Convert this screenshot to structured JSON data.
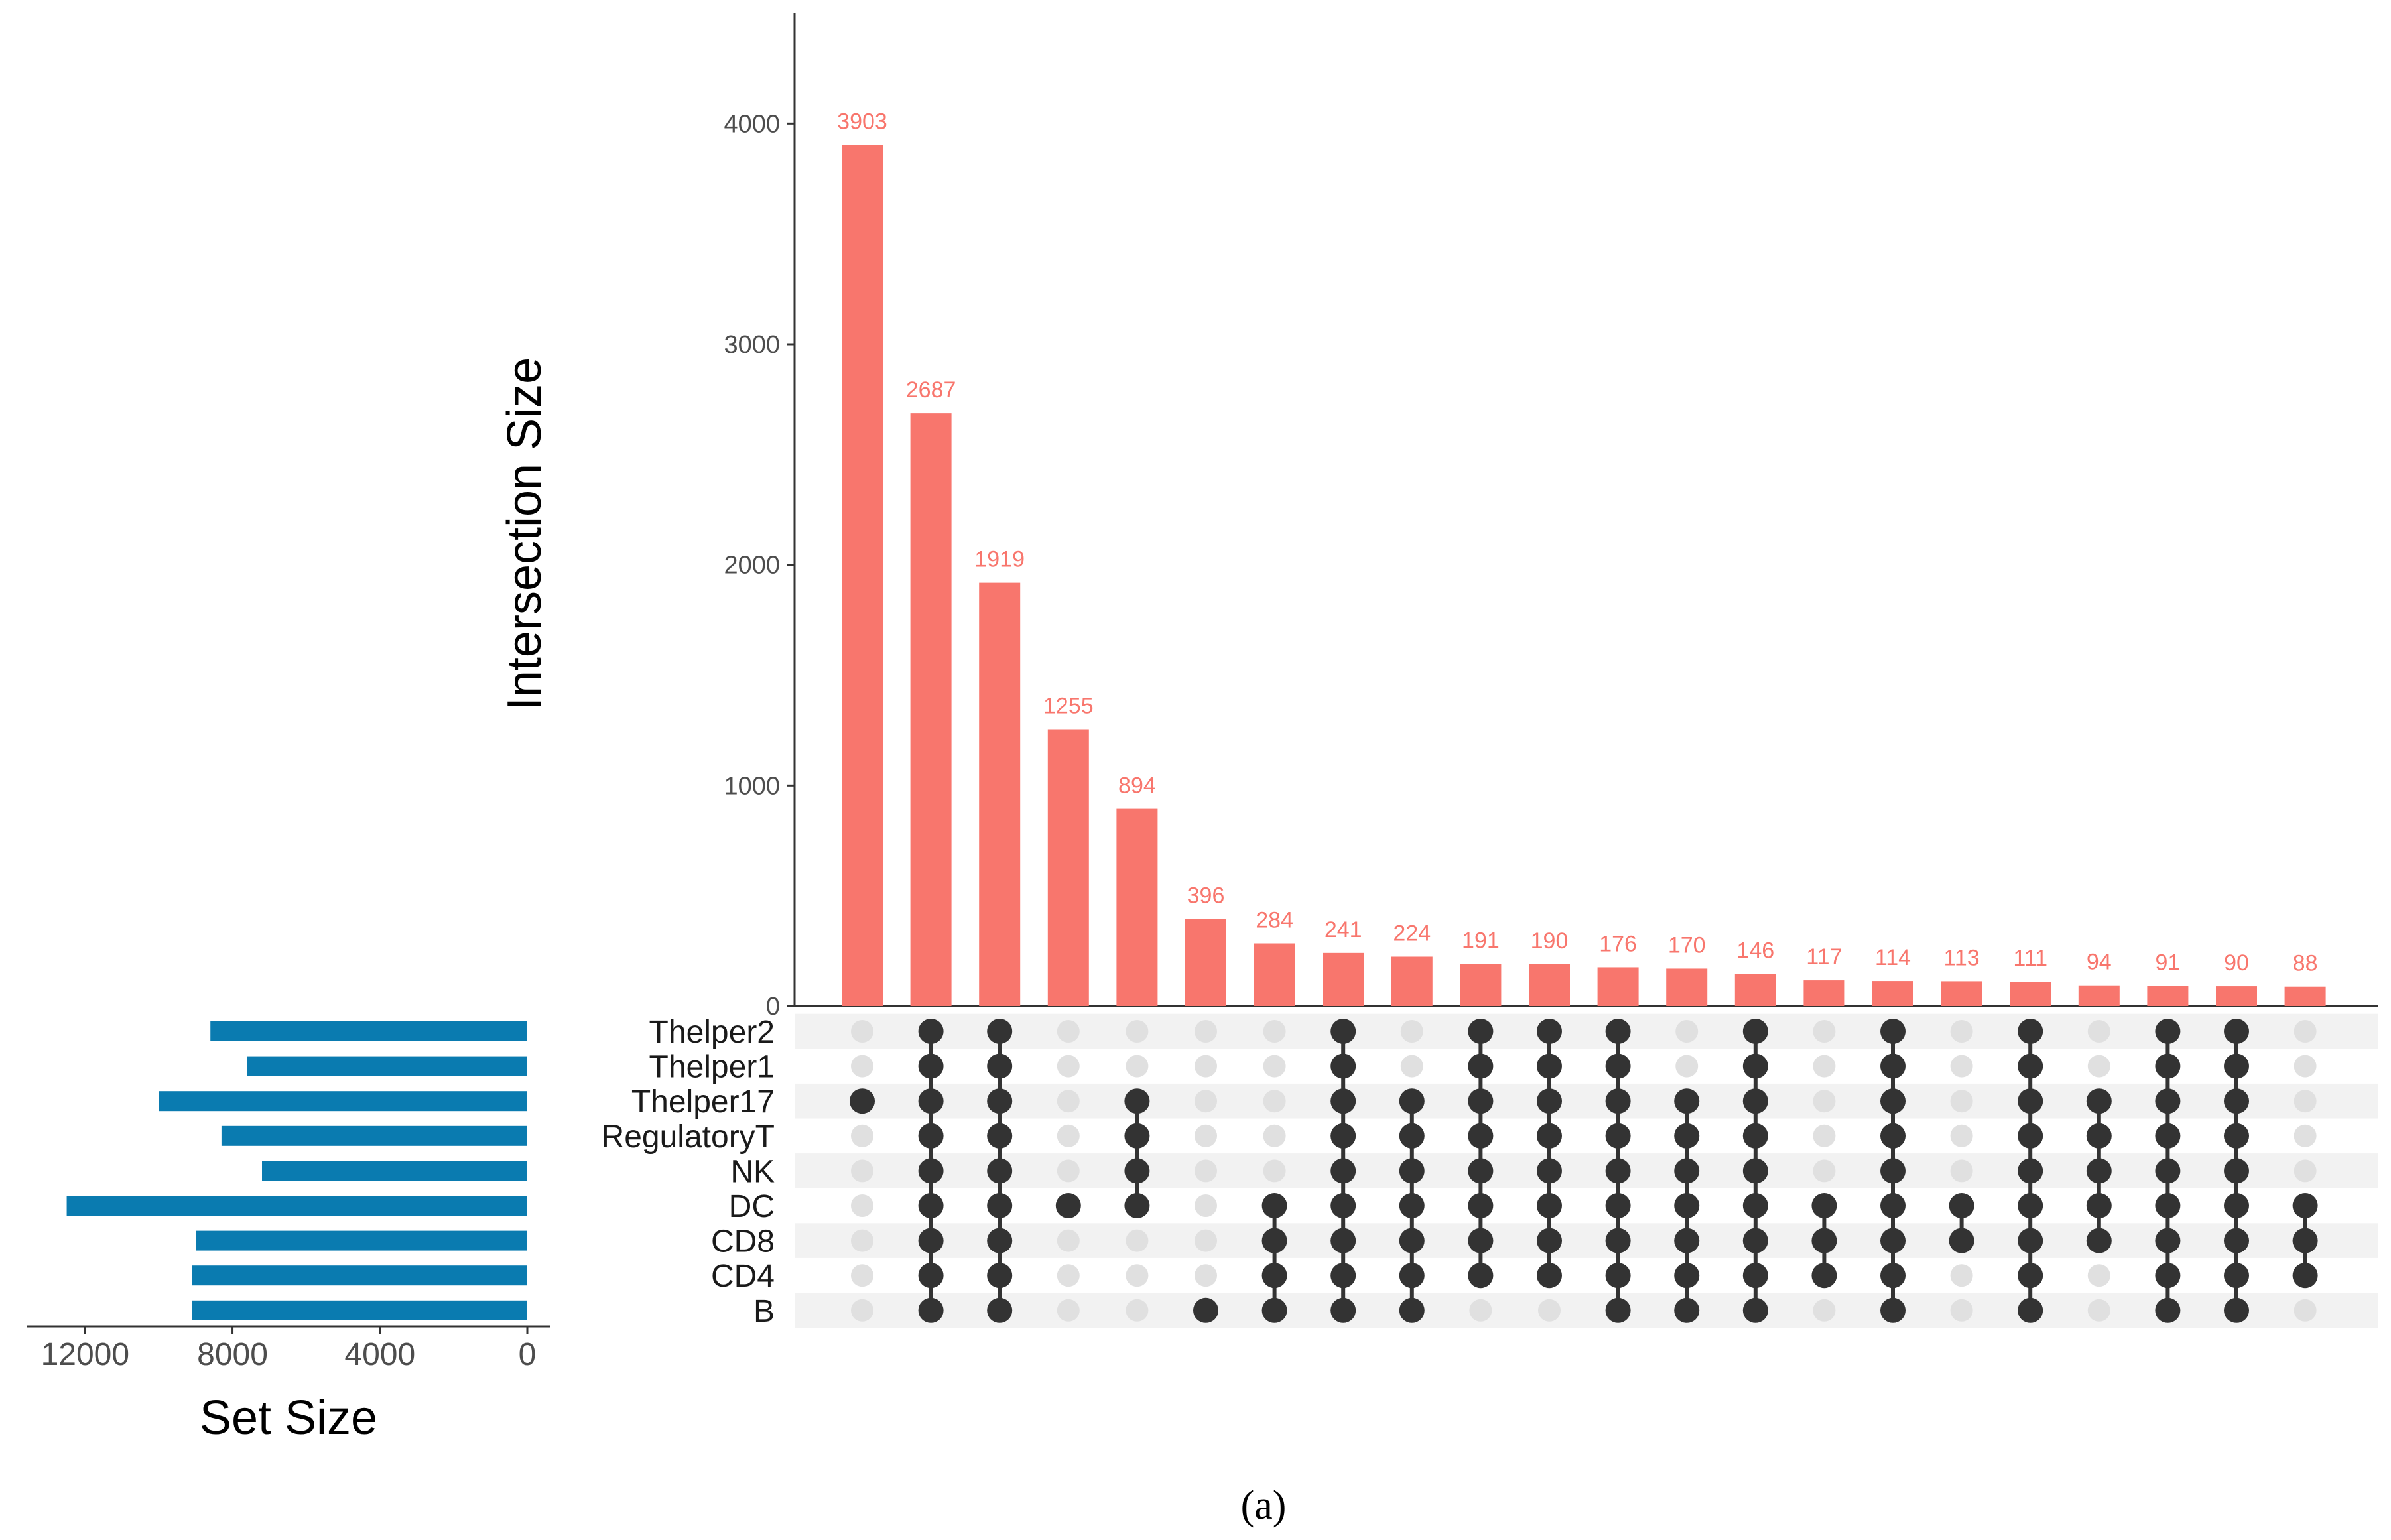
{
  "chart_data": {
    "type": "upset",
    "title": "",
    "caption": "(a)",
    "intersection_axis": {
      "ylabel": "Intersection Size",
      "ylim": [
        0,
        4500
      ],
      "ticks": [
        0,
        1000,
        2000,
        3000,
        4000
      ],
      "tick_labels": [
        "0",
        "1000",
        "2000",
        "3000",
        "4000"
      ]
    },
    "set_size_axis": {
      "xlabel": "Set Size",
      "xlim": [
        13500,
        0
      ],
      "ticks": [
        12000,
        8000,
        4000,
        0
      ],
      "tick_labels": [
        "12000",
        "8000",
        "4000",
        "0"
      ]
    },
    "sets": [
      "Thelper2",
      "Thelper1",
      "Thelper17",
      "RegulatoryT",
      "NK",
      "DC",
      "CD8",
      "CD4",
      "B"
    ],
    "set_sizes": [
      8600,
      7600,
      10000,
      8300,
      7200,
      12500,
      9000,
      9100,
      9100
    ],
    "intersections": [
      {
        "value": 3903,
        "label": "3903",
        "members": [
          "Thelper17"
        ]
      },
      {
        "value": 2687,
        "label": "2687",
        "members": [
          "Thelper2",
          "Thelper1",
          "Thelper17",
          "RegulatoryT",
          "NK",
          "DC",
          "CD8",
          "CD4",
          "B"
        ]
      },
      {
        "value": 1919,
        "label": "1919",
        "members": [
          "Thelper2",
          "Thelper1",
          "Thelper17",
          "RegulatoryT",
          "NK",
          "DC",
          "CD8",
          "CD4",
          "B"
        ]
      },
      {
        "value": 1255,
        "label": "1255",
        "members": [
          "DC"
        ]
      },
      {
        "value": 894,
        "label": "894",
        "members": [
          "Thelper17",
          "RegulatoryT",
          "NK",
          "DC"
        ]
      },
      {
        "value": 396,
        "label": "396",
        "members": [
          "B"
        ]
      },
      {
        "value": 284,
        "label": "284",
        "members": [
          "DC",
          "CD8",
          "CD4",
          "B"
        ]
      },
      {
        "value": 241,
        "label": "241",
        "members": [
          "Thelper2",
          "Thelper1",
          "Thelper17",
          "RegulatoryT",
          "NK",
          "DC",
          "CD8",
          "CD4",
          "B"
        ]
      },
      {
        "value": 224,
        "label": "224",
        "members": [
          "Thelper17",
          "RegulatoryT",
          "NK",
          "DC",
          "CD8",
          "CD4",
          "B"
        ]
      },
      {
        "value": 191,
        "label": "191",
        "members": [
          "Thelper2",
          "Thelper1",
          "Thelper17",
          "RegulatoryT",
          "NK",
          "DC",
          "CD8",
          "CD4"
        ]
      },
      {
        "value": 190,
        "label": "190",
        "members": [
          "Thelper2",
          "Thelper1",
          "Thelper17",
          "RegulatoryT",
          "NK",
          "DC",
          "CD8",
          "CD4"
        ]
      },
      {
        "value": 176,
        "label": "176",
        "members": [
          "Thelper2",
          "Thelper1",
          "Thelper17",
          "RegulatoryT",
          "NK",
          "DC",
          "CD8",
          "CD4",
          "B"
        ]
      },
      {
        "value": 170,
        "label": "170",
        "members": [
          "Thelper17",
          "RegulatoryT",
          "NK",
          "DC",
          "CD8",
          "CD4",
          "B"
        ]
      },
      {
        "value": 146,
        "label": "146",
        "members": [
          "Thelper2",
          "Thelper1",
          "Thelper17",
          "RegulatoryT",
          "NK",
          "DC",
          "CD8",
          "CD4",
          "B"
        ]
      },
      {
        "value": 117,
        "label": "117",
        "members": [
          "DC",
          "CD8",
          "CD4"
        ]
      },
      {
        "value": 114,
        "label": "114",
        "members": [
          "Thelper2",
          "Thelper1",
          "Thelper17",
          "RegulatoryT",
          "NK",
          "DC",
          "CD8",
          "CD4",
          "B"
        ]
      },
      {
        "value": 113,
        "label": "113",
        "members": [
          "DC",
          "CD8"
        ]
      },
      {
        "value": 111,
        "label": "111",
        "members": [
          "Thelper2",
          "Thelper1",
          "Thelper17",
          "RegulatoryT",
          "NK",
          "DC",
          "CD8",
          "CD4",
          "B"
        ]
      },
      {
        "value": 94,
        "label": "94",
        "members": [
          "Thelper17",
          "RegulatoryT",
          "NK",
          "DC",
          "CD8"
        ]
      },
      {
        "value": 91,
        "label": "91",
        "members": [
          "Thelper2",
          "Thelper1",
          "Thelper17",
          "RegulatoryT",
          "NK",
          "DC",
          "CD8",
          "CD4",
          "B"
        ]
      },
      {
        "value": 90,
        "label": "90",
        "members": [
          "Thelper2",
          "Thelper1",
          "Thelper17",
          "RegulatoryT",
          "NK",
          "DC",
          "CD8",
          "CD4",
          "B"
        ]
      },
      {
        "value": 88,
        "label": "88",
        "members": [
          "DC",
          "CD8",
          "CD4"
        ]
      }
    ],
    "colors": {
      "intersection_bars": "#f8766d",
      "bar_labels": "#f8766d",
      "set_bars": "#0a7bb0",
      "active_dot": "#333333",
      "inactive_dot": "#e0e0e0",
      "stripe": "#f2f2f2",
      "axis": "#333333"
    }
  }
}
